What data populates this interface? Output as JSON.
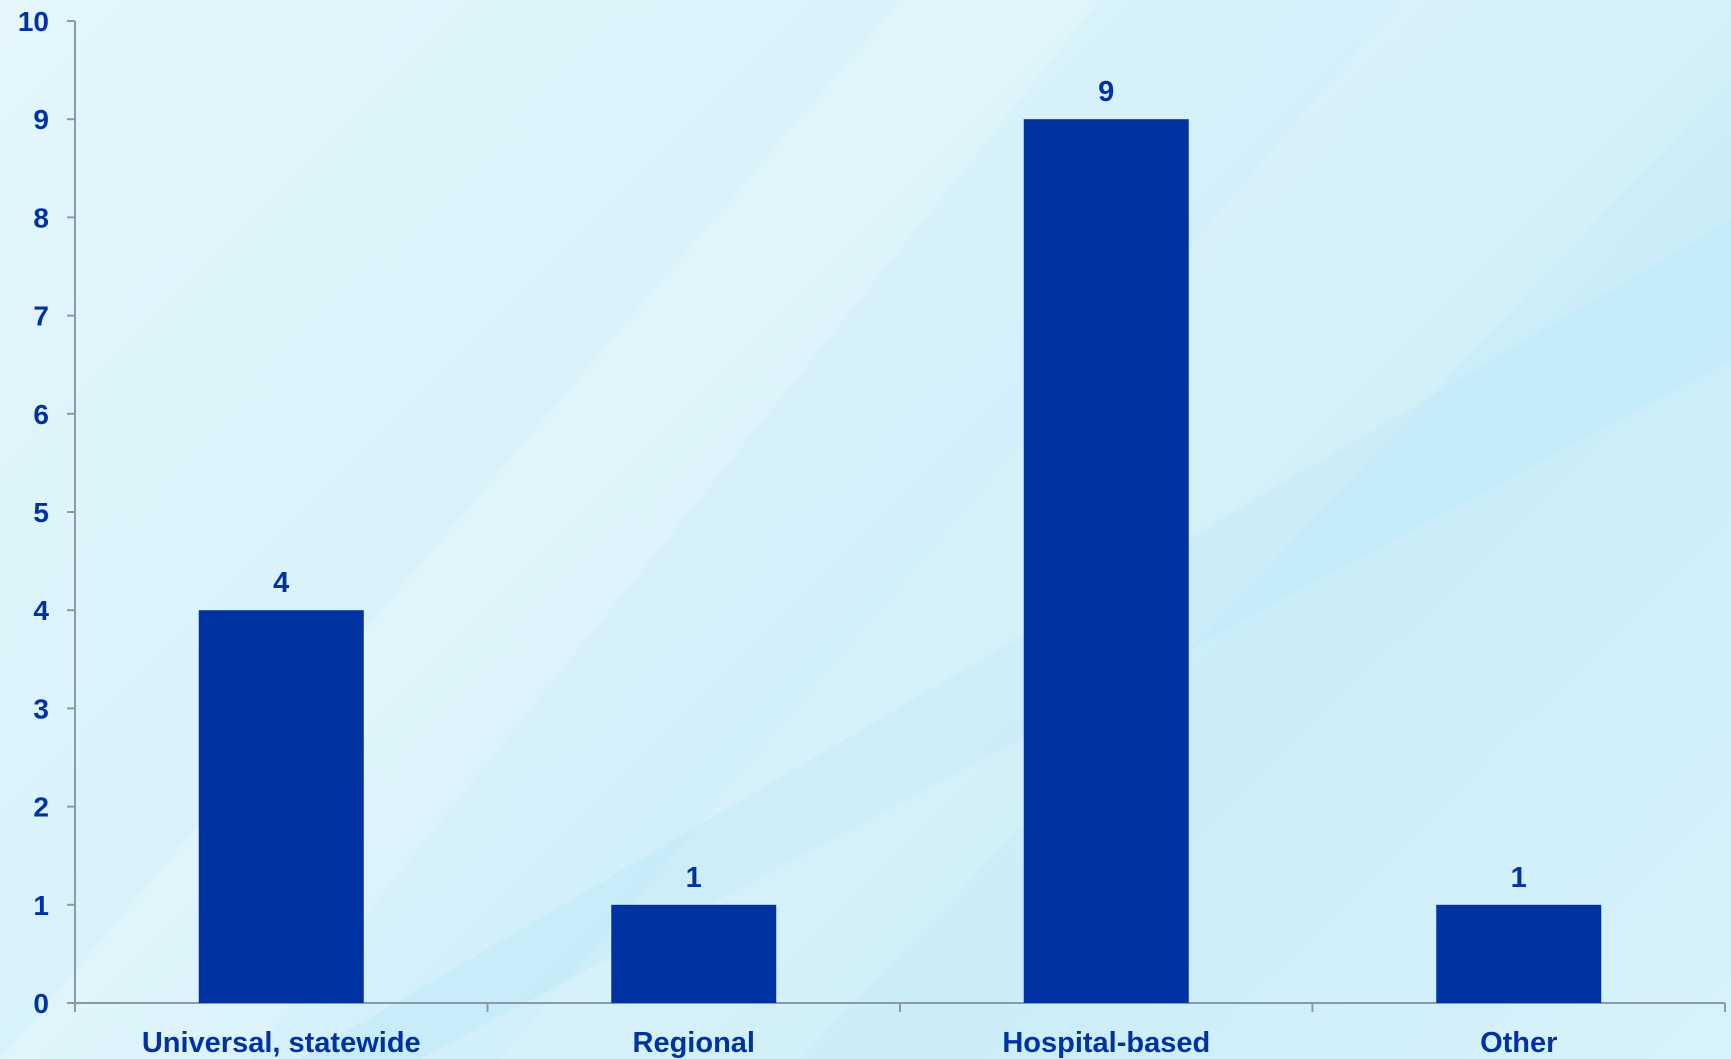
{
  "chart_data": {
    "type": "bar",
    "categories": [
      "Universal, statewide",
      "Regional",
      "Hospital-based",
      "Other"
    ],
    "values": [
      4,
      1,
      9,
      1
    ],
    "data_labels": [
      "4",
      "1",
      "9",
      "1"
    ],
    "title": "",
    "xlabel": "",
    "ylabel": "",
    "ylim": [
      0,
      10
    ],
    "yticks": [
      "0",
      "1",
      "2",
      "3",
      "4",
      "5",
      "6",
      "7",
      "8",
      "9",
      "10"
    ],
    "grid": false,
    "legend": "none"
  },
  "colors": {
    "bar": "#0033a1",
    "text": "#0033a1",
    "axis": "#8a9aa8"
  }
}
